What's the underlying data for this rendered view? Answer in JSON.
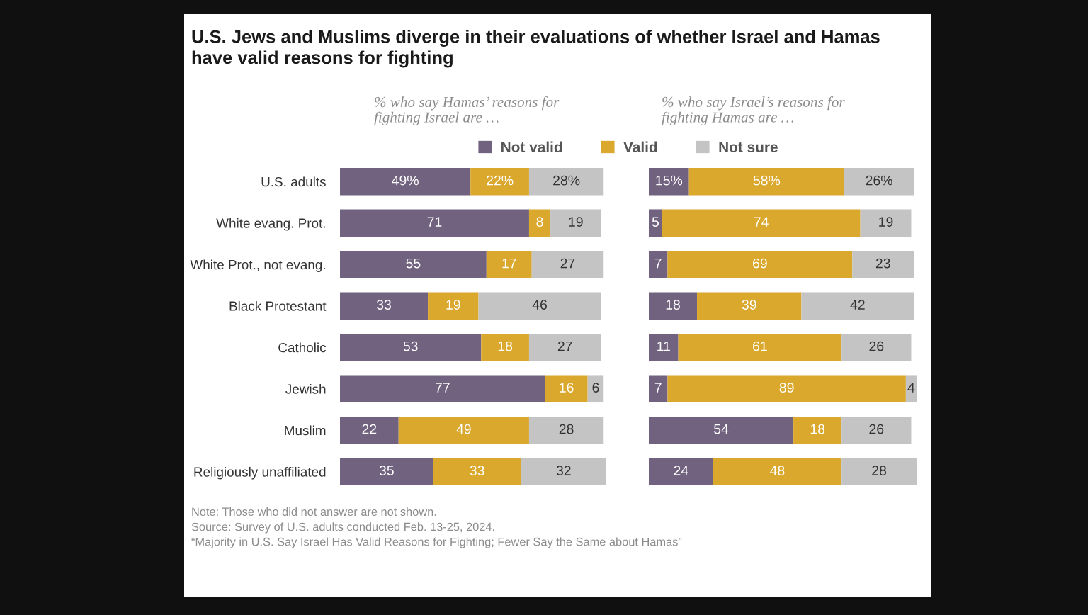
{
  "chart_data": [
    {
      "type": "bar",
      "orientation": "horizontal",
      "stacked": true,
      "title": "U.S. Jews and Muslims diverge in their evaluations of whether Israel and Hamas\nhave valid reasons for fighting",
      "subtitle": "% who say Hamas’ reasons for\nfighting Israel are …",
      "categories": [
        "U.S. adults",
        "White evang. Prot.",
        "White Prot., not evang.",
        "Black Protestant",
        "Catholic",
        "Jewish",
        "Muslim",
        "Religiously unaffiliated"
      ],
      "series": [
        {
          "name": "Not valid",
          "color": "#716380",
          "values": [
            49,
            71,
            55,
            33,
            53,
            77,
            22,
            35
          ],
          "value_labels": [
            "49%",
            "71",
            "55",
            "33",
            "53",
            "77",
            "22",
            "35"
          ]
        },
        {
          "name": "Valid",
          "color": "#daa82c",
          "values": [
            22,
            8,
            17,
            19,
            18,
            16,
            49,
            33
          ],
          "value_labels": [
            "22%",
            "8",
            "17",
            "19",
            "18",
            "16",
            "49",
            "33"
          ]
        },
        {
          "name": "Not sure",
          "color": "#c4c4c4",
          "values": [
            28,
            19,
            27,
            46,
            27,
            6,
            28,
            32
          ],
          "value_labels": [
            "28%",
            "19",
            "27",
            "46",
            "27",
            "6",
            "28",
            "32"
          ]
        }
      ],
      "xlim": [
        0,
        100
      ],
      "tick_labels": "y",
      "legend": "top",
      "annotations": [
        "Note: Those who did not answer are not shown.",
        "Source: Survey of U.S. adults conducted Feb. 13-25, 2024.",
        "“Majority in U.S. Say Israel Has Valid Reasons for Fighting; Fewer Say the Same about Hamas”"
      ]
    },
    {
      "type": "bar",
      "orientation": "horizontal",
      "stacked": true,
      "subtitle": "% who say Israel’s reasons for\nfighting Hamas are …",
      "categories": [
        null,
        null,
        null,
        null,
        null,
        null,
        null,
        null
      ],
      "series": [
        {
          "color": "#716380",
          "values": [
            15,
            5,
            7,
            18,
            11,
            7,
            54,
            24
          ],
          "value_labels": [
            "15%",
            "5",
            "7",
            "18",
            "11",
            "7",
            "54",
            "24"
          ]
        },
        {
          "color": "#daa82c",
          "values": [
            58,
            74,
            69,
            39,
            61,
            89,
            18,
            48
          ],
          "value_labels": [
            "58%",
            "74",
            "69",
            "39",
            "61",
            "89",
            "18",
            "48"
          ]
        },
        {
          "color": "#c4c4c4",
          "values": [
            26,
            19,
            23,
            42,
            26,
            4,
            26,
            28
          ],
          "value_labels": [
            "26%",
            "19",
            "23",
            "42",
            "26",
            "4",
            "26",
            "28"
          ]
        }
      ],
      "xlim": [
        0,
        100
      ],
      "tick_labels": false
    }
  ]
}
